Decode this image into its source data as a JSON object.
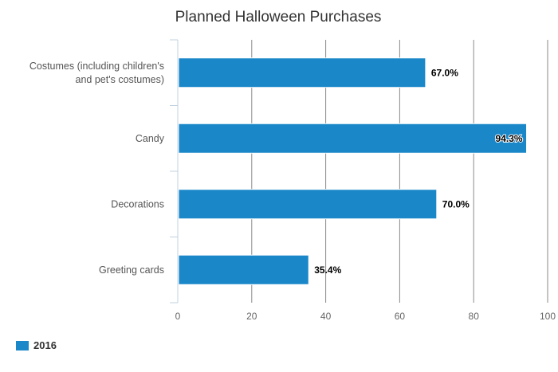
{
  "chart_data": {
    "type": "bar",
    "orientation": "horizontal",
    "title": "Planned Halloween Purchases",
    "categories": [
      [
        "Costumes (including children's",
        "and pet's costumes)"
      ],
      [
        "Candy"
      ],
      [
        "Decorations"
      ],
      [
        "Greeting cards"
      ]
    ],
    "series": [
      {
        "name": "2016",
        "values": [
          67.0,
          94.3,
          70.0,
          35.4
        ],
        "labels": [
          "67.0%",
          "94.3%",
          "70.0%",
          "35.4%"
        ]
      }
    ],
    "xlim": [
      0,
      100
    ],
    "ticks": [
      "0",
      "20",
      "40",
      "60",
      "80",
      "100"
    ],
    "grid": true,
    "legend": "bottom-left",
    "color": "#1a87c9"
  }
}
